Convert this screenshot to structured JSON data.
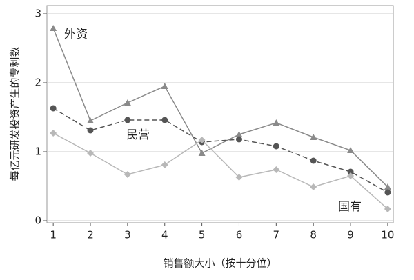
{
  "chart_data": {
    "type": "line",
    "x": [
      1,
      2,
      3,
      4,
      5,
      6,
      7,
      8,
      9,
      10
    ],
    "xlabel": "销售额大小（按十分位）",
    "ylabel": "每亿元研发投资产生的专利数",
    "xlim": [
      0.83,
      10.15
    ],
    "ylim": [
      -0.03,
      3.12
    ],
    "xticks": [
      1,
      2,
      3,
      4,
      5,
      6,
      7,
      8,
      9,
      10
    ],
    "yticks": [
      0,
      1,
      2,
      3
    ],
    "grid": true,
    "series": [
      {
        "name": "外资",
        "color": "#8a8a8a",
        "marker": "triangle",
        "dash": false,
        "values": [
          2.79,
          1.45,
          1.71,
          1.95,
          0.98,
          1.25,
          1.42,
          1.21,
          1.02,
          0.49
        ]
      },
      {
        "name": "民营",
        "color": "#555555",
        "marker": "circle",
        "dash": true,
        "values": [
          1.63,
          1.31,
          1.46,
          1.46,
          1.14,
          1.18,
          1.08,
          0.87,
          0.71,
          0.41
        ]
      },
      {
        "name": "国有",
        "color": "#b8b8b8",
        "marker": "diamond",
        "dash": false,
        "values": [
          1.27,
          0.98,
          0.67,
          0.81,
          1.17,
          0.63,
          0.74,
          0.49,
          0.65,
          0.17
        ]
      }
    ]
  }
}
